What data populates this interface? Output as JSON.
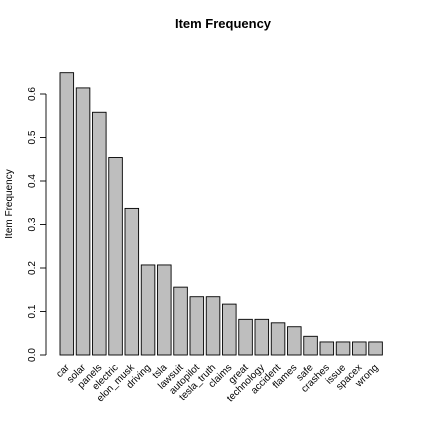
{
  "chart_data": {
    "type": "bar",
    "title": "Item Frequency",
    "xlabel": "",
    "ylabel": "Item Frequency",
    "ylim": [
      0,
      0.66
    ],
    "yticks": [
      0.0,
      0.1,
      0.2,
      0.3,
      0.4,
      0.5,
      0.6
    ],
    "ytick_labels": [
      "0.0",
      "0.1",
      "0.2",
      "0.3",
      "0.4",
      "0.5",
      "0.6"
    ],
    "grid": false,
    "categories": [
      "car",
      "solar",
      "panels",
      "electric",
      "elon_musk",
      "driving",
      "tsla",
      "lawsuit",
      "autopilot",
      "tesla_truth",
      "claims",
      "great",
      "technology",
      "accident",
      "flames",
      "safe",
      "crashes",
      "issue",
      "spacex",
      "wrong"
    ],
    "values": [
      0.649,
      0.614,
      0.558,
      0.454,
      0.337,
      0.207,
      0.207,
      0.156,
      0.134,
      0.134,
      0.117,
      0.082,
      0.082,
      0.074,
      0.065,
      0.043,
      0.03,
      0.03,
      0.03,
      0.03
    ],
    "colors": {
      "bar_fill": "#bebebe",
      "bar_stroke": "#000000"
    }
  }
}
